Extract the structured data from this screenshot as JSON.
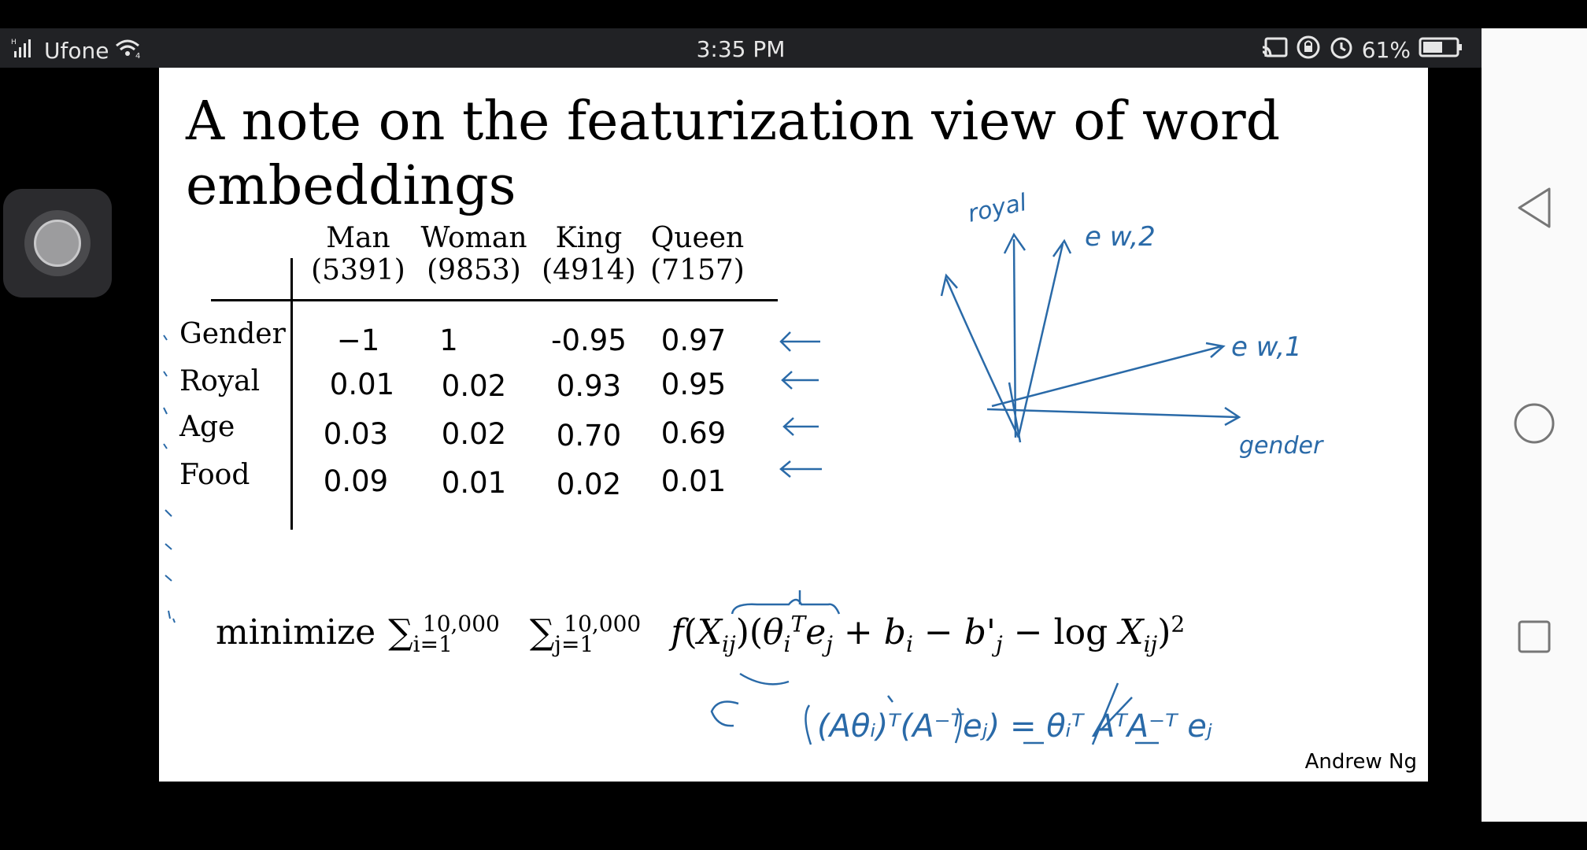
{
  "status_bar": {
    "carrier": "Ufone",
    "time": "3:35 PM",
    "battery_percent": "61%",
    "battery_level": 0.61
  },
  "slide": {
    "title": "A note on the featurization view of word embeddings",
    "columns": [
      {
        "word": "Man",
        "index": "(5391)"
      },
      {
        "word": "Woman",
        "index": "(9853)"
      },
      {
        "word": "King",
        "index": "(4914)"
      },
      {
        "word": "Queen",
        "index": "(7157)"
      }
    ],
    "rows": [
      {
        "feature": "Gender",
        "values": [
          "−1",
          "1",
          "-0.95",
          "0.97"
        ]
      },
      {
        "feature": "Royal",
        "values": [
          "0.01",
          "0.02",
          "0.93",
          "0.95"
        ]
      },
      {
        "feature": "Age",
        "values": [
          "0.03",
          "0.02",
          "0.70",
          "0.69"
        ]
      },
      {
        "feature": "Food",
        "values": [
          "0.09",
          "0.01",
          "0.02",
          "0.01"
        ]
      }
    ],
    "formula_label": "minimize",
    "handwritten": {
      "royal": "royal",
      "e_w2": "e w,2",
      "e_w1": "e w,1",
      "gender": "gender"
    },
    "credit": "Andrew Ng"
  },
  "icons": {
    "signal": "signal-icon",
    "wifi": "wifi-icon",
    "cast": "cast-icon",
    "lock": "lock-rotation-icon",
    "alarm": "alarm-icon",
    "battery": "battery-icon",
    "back": "back-triangle-icon",
    "home": "home-circle-icon",
    "recents": "recents-square-icon"
  },
  "colors": {
    "ink": "#2a6aa8",
    "status_bg": "#212225"
  }
}
